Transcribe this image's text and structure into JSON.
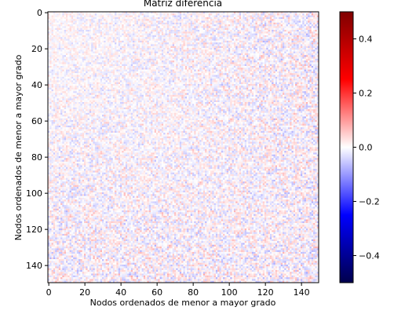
{
  "chart_data": {
    "type": "heatmap",
    "title": "Matriz diferencia",
    "xlabel": "Nodos ordenados de menor a mayor grado",
    "ylabel": "Nodos ordenados de menor a mayor grado",
    "rows": 150,
    "cols": 150,
    "xlim": [
      0,
      149
    ],
    "ylim": [
      149,
      0
    ],
    "x_ticks": [
      0,
      20,
      40,
      60,
      80,
      100,
      120,
      140
    ],
    "y_ticks": [
      0,
      20,
      40,
      60,
      80,
      100,
      120,
      140
    ],
    "value_range": [
      -0.5,
      0.5
    ],
    "colormap": "seismic",
    "colorbar_ticks": [
      0.4,
      0.2,
      0.0,
      -0.2,
      -0.4
    ],
    "colorbar_tick_labels": [
      "0.4",
      "0.2",
      "0.0",
      "−0.2",
      "−0.4"
    ],
    "cell_values_note": "",
    "typical_abs_value": 0.04,
    "pattern": "near-zero noise, slightly stronger toward high-degree nodes"
  }
}
